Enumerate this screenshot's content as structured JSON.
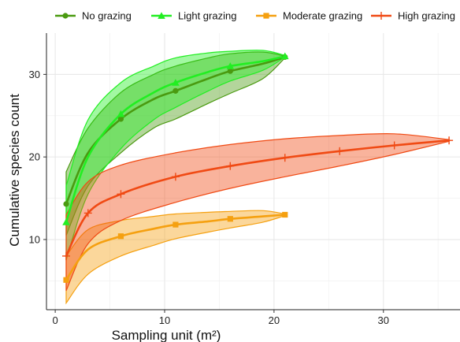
{
  "chart_data": {
    "type": "line",
    "title": "",
    "xlabel": "Sampling unit (m²)",
    "ylabel": "Cumulative species count",
    "xlim": [
      -0.8,
      37
    ],
    "ylim": [
      1.5,
      35
    ],
    "xticks": [
      0,
      10,
      20,
      30
    ],
    "yticks": [
      10,
      20,
      30
    ],
    "grid": true,
    "legend": "top",
    "series": [
      {
        "name": "No grazing",
        "color": "#4a9a10",
        "marker": "circle",
        "x": [
          1,
          3,
          6,
          9,
          11,
          14,
          16,
          19,
          21
        ],
        "y": [
          14.3,
          20.5,
          24.6,
          27.0,
          28.0,
          29.5,
          30.4,
          31.3,
          32.1
        ],
        "upper": [
          18.2,
          23.5,
          27.8,
          30.0,
          31.0,
          32.0,
          32.5,
          32.7,
          32.2
        ],
        "lower": [
          10.5,
          16.5,
          20.5,
          23.5,
          24.6,
          26.5,
          27.7,
          29.5,
          32.0
        ]
      },
      {
        "name": "Light grazing",
        "color": "#22ee22",
        "marker": "triangle",
        "x": [
          1,
          3,
          6,
          9,
          11,
          14,
          16,
          19,
          21
        ],
        "y": [
          12.1,
          20.0,
          25.2,
          27.8,
          29.0,
          30.3,
          31.0,
          31.6,
          32.2
        ],
        "upper": [
          16.5,
          24.5,
          29.0,
          31.0,
          32.0,
          32.6,
          32.8,
          32.9,
          32.3
        ],
        "lower": [
          7.5,
          15.5,
          21.0,
          24.5,
          26.0,
          28.0,
          29.2,
          30.5,
          32.1
        ]
      },
      {
        "name": "Moderate grazing",
        "color": "#f5a010",
        "marker": "square",
        "x": [
          1,
          3,
          6,
          9,
          11,
          14,
          16,
          19,
          21
        ],
        "y": [
          5.1,
          8.8,
          10.4,
          11.3,
          11.8,
          12.2,
          12.5,
          12.8,
          13.0
        ],
        "upper": [
          8.0,
          11.2,
          12.3,
          12.8,
          13.1,
          13.3,
          13.4,
          13.5,
          13.1
        ],
        "lower": [
          2.3,
          5.8,
          8.0,
          9.3,
          10.1,
          10.9,
          11.4,
          12.1,
          12.9
        ]
      },
      {
        "name": "High grazing",
        "color": "#f04a14",
        "marker": "plus",
        "x": [
          1,
          3,
          6,
          11,
          16,
          21,
          26,
          31,
          36
        ],
        "y": [
          8.0,
          13.2,
          15.5,
          17.6,
          18.9,
          19.9,
          20.7,
          21.4,
          22.0
        ],
        "upper": [
          13.0,
          17.0,
          19.0,
          20.5,
          21.5,
          22.2,
          22.6,
          22.8,
          22.1
        ],
        "lower": [
          3.8,
          9.5,
          12.3,
          14.5,
          16.2,
          17.6,
          18.9,
          20.3,
          21.9
        ]
      }
    ]
  }
}
